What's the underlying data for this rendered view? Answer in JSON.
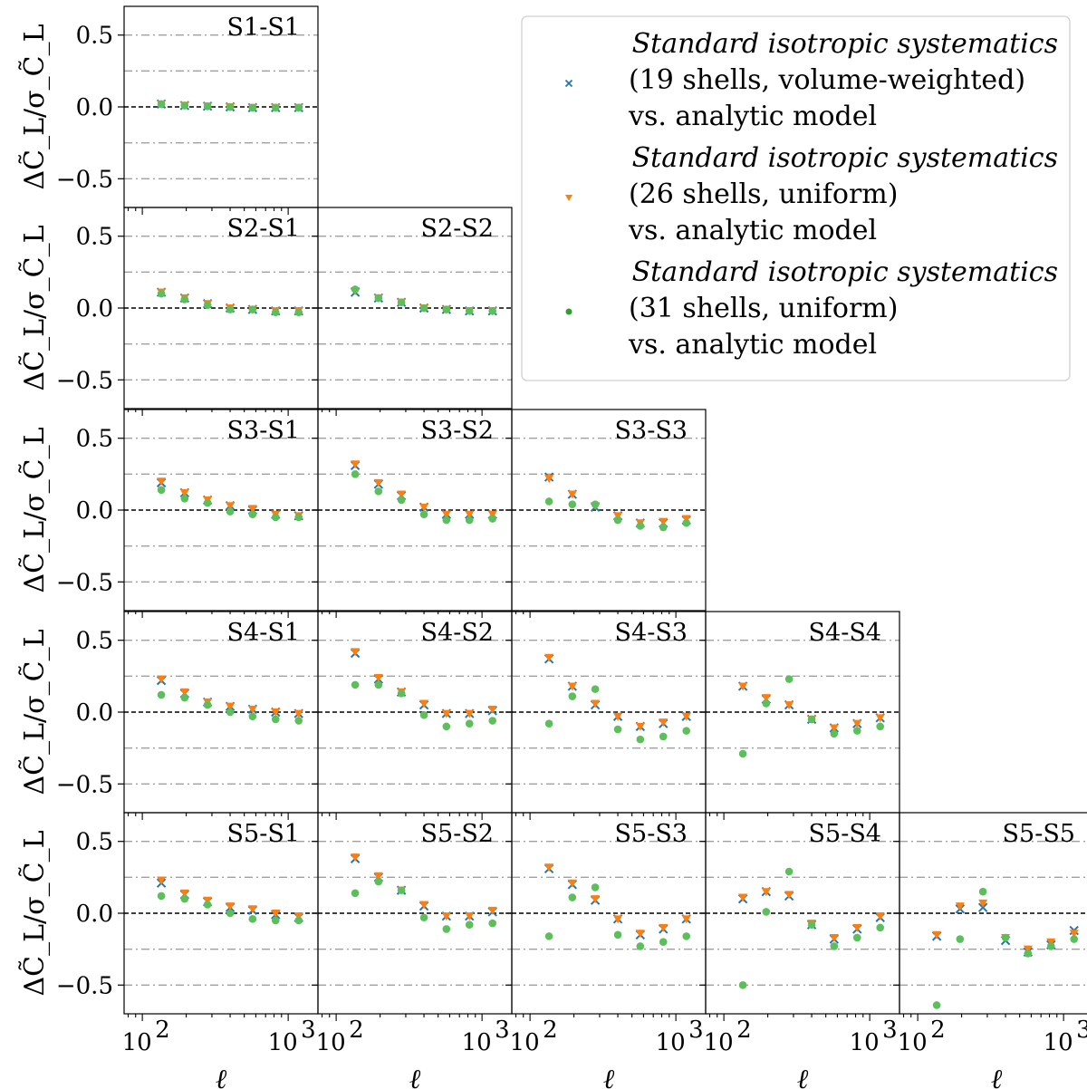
{
  "chart_data": {
    "type": "scatter",
    "ylabel": "ΔC̃_L/σ_C̃_L",
    "xlabel": "ℓ",
    "xscale": "log",
    "xlim": [
      75,
      1600
    ],
    "ylim": [
      -0.7,
      0.7
    ],
    "yticks": [
      0.5,
      0.0,
      -0.5
    ],
    "ytick_labels": [
      "0.5",
      "0.0",
      "−0.5"
    ],
    "xticks": [
      100,
      1000
    ],
    "xtick_labels": [
      "10",
      "10"
    ],
    "xtick_exponents": [
      "2",
      "3"
    ],
    "reference_lines": {
      "dashed_black": [
        0.0
      ],
      "dashdot_gray": [
        0.5,
        0.25,
        -0.25,
        -0.5
      ]
    },
    "x": [
      135,
      195,
      280,
      400,
      570,
      820,
      1180
    ],
    "legend": {
      "placement": "upper-right",
      "entries": [
        {
          "line1": "Standard isotropic systematics",
          "line2": "(19 shells, volume-weighted)",
          "line3": "vs. analytic model",
          "marker": "x",
          "color": "#1f77b4"
        },
        {
          "line1": "Standard isotropic systematics",
          "line2": "(26 shells, uniform)",
          "line3": "vs. analytic model",
          "marker": "triangle-down",
          "color": "#ff7f0e"
        },
        {
          "line1": "Standard isotropic systematics",
          "line2": "(31 shells, uniform)",
          "line3": "vs. analytic model",
          "marker": "circle",
          "color": "#2ca02c"
        }
      ]
    },
    "panels": [
      {
        "title": "S1-S1",
        "series": [
          {
            "name": "19 shells",
            "values": [
              0.02,
              0.01,
              0.005,
              0.0,
              -0.005,
              -0.005,
              -0.005
            ]
          },
          {
            "name": "26 shells",
            "values": [
              0.02,
              0.01,
              0.005,
              0.0,
              -0.005,
              -0.005,
              -0.005
            ]
          },
          {
            "name": "31 shells",
            "values": [
              0.02,
              0.01,
              0.005,
              0.0,
              -0.005,
              -0.005,
              -0.005
            ]
          }
        ]
      },
      {
        "title": "S2-S1",
        "series": [
          {
            "name": "19 shells",
            "values": [
              0.11,
              0.07,
              0.03,
              0.0,
              -0.01,
              -0.02,
              -0.02
            ]
          },
          {
            "name": "26 shells",
            "values": [
              0.11,
              0.07,
              0.03,
              0.0,
              -0.01,
              -0.02,
              -0.02
            ]
          },
          {
            "name": "31 shells",
            "values": [
              0.1,
              0.06,
              0.02,
              -0.01,
              -0.01,
              -0.03,
              -0.03
            ]
          }
        ]
      },
      {
        "title": "S2-S2",
        "series": [
          {
            "name": "19 shells",
            "values": [
              0.11,
              0.07,
              0.04,
              0.0,
              -0.01,
              -0.02,
              -0.02
            ]
          },
          {
            "name": "26 shells",
            "values": [
              0.12,
              0.07,
              0.04,
              0.0,
              -0.01,
              -0.02,
              -0.02
            ]
          },
          {
            "name": "31 shells",
            "values": [
              0.13,
              0.07,
              0.04,
              0.0,
              -0.01,
              -0.02,
              -0.02
            ]
          }
        ]
      },
      {
        "title": "S3-S1",
        "series": [
          {
            "name": "19 shells",
            "values": [
              0.19,
              0.12,
              0.07,
              0.03,
              0.0,
              -0.03,
              -0.04
            ]
          },
          {
            "name": "26 shells",
            "values": [
              0.2,
              0.12,
              0.07,
              0.03,
              0.01,
              -0.03,
              -0.04
            ]
          },
          {
            "name": "31 shells",
            "values": [
              0.14,
              0.08,
              0.05,
              -0.01,
              -0.03,
              -0.05,
              -0.05
            ]
          }
        ]
      },
      {
        "title": "S3-S2",
        "series": [
          {
            "name": "19 shells",
            "values": [
              0.31,
              0.18,
              0.1,
              0.02,
              -0.03,
              -0.03,
              -0.03
            ]
          },
          {
            "name": "26 shells",
            "values": [
              0.32,
              0.19,
              0.11,
              0.02,
              -0.03,
              -0.03,
              -0.03
            ]
          },
          {
            "name": "31 shells",
            "values": [
              0.25,
              0.13,
              0.07,
              -0.03,
              -0.07,
              -0.07,
              -0.06
            ]
          }
        ]
      },
      {
        "title": "S3-S3",
        "series": [
          {
            "name": "19 shells",
            "values": [
              0.23,
              0.11,
              0.02,
              -0.04,
              -0.09,
              -0.09,
              -0.07
            ]
          },
          {
            "name": "26 shells",
            "values": [
              0.22,
              0.11,
              0.03,
              -0.04,
              -0.09,
              -0.08,
              -0.06
            ]
          },
          {
            "name": "31 shells",
            "values": [
              0.06,
              0.04,
              0.04,
              -0.07,
              -0.11,
              -0.12,
              -0.09
            ]
          }
        ]
      },
      {
        "title": "S4-S1",
        "series": [
          {
            "name": "19 shells",
            "values": [
              0.22,
              0.13,
              0.07,
              0.04,
              0.02,
              0.0,
              -0.01
            ]
          },
          {
            "name": "26 shells",
            "values": [
              0.23,
              0.14,
              0.07,
              0.04,
              0.02,
              0.0,
              -0.01
            ]
          },
          {
            "name": "31 shells",
            "values": [
              0.12,
              0.1,
              0.05,
              0.0,
              -0.03,
              -0.05,
              -0.06
            ]
          }
        ]
      },
      {
        "title": "S4-S2",
        "series": [
          {
            "name": "19 shells",
            "values": [
              0.41,
              0.23,
              0.14,
              0.05,
              -0.01,
              -0.01,
              0.01
            ]
          },
          {
            "name": "26 shells",
            "values": [
              0.42,
              0.24,
              0.14,
              0.06,
              -0.01,
              -0.01,
              0.02
            ]
          },
          {
            "name": "31 shells",
            "values": [
              0.19,
              0.19,
              0.13,
              -0.02,
              -0.1,
              -0.08,
              -0.06
            ]
          }
        ]
      },
      {
        "title": "S4-S3",
        "series": [
          {
            "name": "19 shells",
            "values": [
              0.37,
              0.18,
              0.05,
              -0.03,
              -0.1,
              -0.08,
              -0.03
            ]
          },
          {
            "name": "26 shells",
            "values": [
              0.38,
              0.18,
              0.06,
              -0.03,
              -0.1,
              -0.07,
              -0.03
            ]
          },
          {
            "name": "31 shells",
            "values": [
              -0.08,
              0.11,
              0.16,
              -0.12,
              -0.19,
              -0.17,
              -0.13
            ]
          }
        ]
      },
      {
        "title": "S4-S4",
        "series": [
          {
            "name": "19 shells",
            "values": [
              0.18,
              0.09,
              0.05,
              -0.05,
              -0.11,
              -0.08,
              -0.04
            ]
          },
          {
            "name": "26 shells",
            "values": [
              0.18,
              0.1,
              0.05,
              -0.05,
              -0.11,
              -0.08,
              -0.04
            ]
          },
          {
            "name": "31 shells",
            "values": [
              -0.29,
              0.06,
              0.23,
              -0.05,
              -0.15,
              -0.13,
              -0.1
            ]
          }
        ]
      },
      {
        "title": "S5-S1",
        "series": [
          {
            "name": "19 shells",
            "values": [
              0.21,
              0.13,
              0.08,
              0.04,
              0.02,
              -0.01,
              -0.03
            ]
          },
          {
            "name": "26 shells",
            "values": [
              0.23,
              0.14,
              0.09,
              0.05,
              0.03,
              0.0,
              -0.02
            ]
          },
          {
            "name": "31 shells",
            "values": [
              0.12,
              0.1,
              0.06,
              0.0,
              -0.04,
              -0.05,
              -0.05
            ]
          }
        ]
      },
      {
        "title": "S5-S2",
        "series": [
          {
            "name": "19 shells",
            "values": [
              0.38,
              0.25,
              0.16,
              0.05,
              -0.02,
              -0.02,
              0.01
            ]
          },
          {
            "name": "26 shells",
            "values": [
              0.39,
              0.26,
              0.16,
              0.06,
              -0.02,
              -0.02,
              0.02
            ]
          },
          {
            "name": "31 shells",
            "values": [
              0.14,
              0.22,
              0.16,
              -0.03,
              -0.11,
              -0.08,
              -0.07
            ]
          }
        ]
      },
      {
        "title": "S5-S3",
        "series": [
          {
            "name": "19 shells",
            "values": [
              0.31,
              0.2,
              0.09,
              -0.04,
              -0.15,
              -0.11,
              -0.04
            ]
          },
          {
            "name": "26 shells",
            "values": [
              0.32,
              0.21,
              0.1,
              -0.04,
              -0.14,
              -0.1,
              -0.04
            ]
          },
          {
            "name": "31 shells",
            "values": [
              -0.16,
              0.11,
              0.18,
              -0.15,
              -0.23,
              -0.2,
              -0.16
            ]
          }
        ]
      },
      {
        "title": "S5-S4",
        "series": [
          {
            "name": "19 shells",
            "values": [
              0.1,
              0.15,
              0.12,
              -0.08,
              -0.18,
              -0.11,
              -0.03
            ]
          },
          {
            "name": "26 shells",
            "values": [
              0.11,
              0.15,
              0.13,
              -0.07,
              -0.17,
              -0.1,
              -0.02
            ]
          },
          {
            "name": "31 shells",
            "values": [
              -0.5,
              0.01,
              0.29,
              -0.08,
              -0.23,
              -0.17,
              -0.1
            ]
          }
        ]
      },
      {
        "title": "S5-S5",
        "series": [
          {
            "name": "19 shells",
            "values": [
              -0.16,
              0.03,
              0.04,
              -0.19,
              -0.27,
              -0.22,
              -0.12
            ]
          },
          {
            "name": "26 shells",
            "values": [
              -0.15,
              0.05,
              0.07,
              -0.17,
              -0.25,
              -0.2,
              -0.14
            ]
          },
          {
            "name": "31 shells",
            "values": [
              -0.64,
              -0.18,
              0.15,
              -0.17,
              -0.28,
              -0.23,
              -0.18
            ]
          }
        ]
      }
    ]
  }
}
